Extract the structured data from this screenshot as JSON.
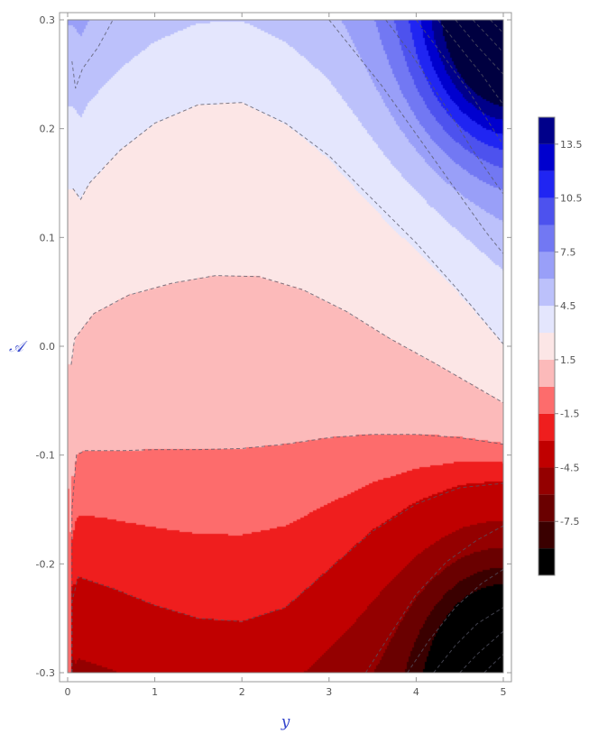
{
  "chart_data": {
    "type": "contour",
    "xlabel": "y",
    "ylabel": "𝒜",
    "xlim": [
      0,
      5
    ],
    "ylim": [
      -0.3,
      0.3
    ],
    "x_ticks": [
      0,
      1,
      2,
      3,
      4,
      5
    ],
    "y_ticks": [
      -0.3,
      -0.2,
      -0.1,
      0.0,
      0.1,
      0.2,
      0.3
    ],
    "x_tick_labels": [
      "0",
      "1",
      "2",
      "3",
      "4",
      "5"
    ],
    "y_tick_labels": [
      "-0.3",
      "-0.2",
      "-0.1",
      "0.0",
      "0.1",
      "0.2",
      "0.3"
    ],
    "colorbar": {
      "range": [
        -10.5,
        15
      ],
      "levels": [
        -10.5,
        -9,
        -7.5,
        -6,
        -4.5,
        -3,
        -1.5,
        0,
        1.5,
        3,
        4.5,
        6,
        7.5,
        9,
        10.5,
        12,
        13.5,
        15
      ],
      "tick_values": [
        -7.5,
        -4.5,
        -1.5,
        1.5,
        4.5,
        7.5,
        10.5,
        13.5
      ],
      "tick_labels": [
        "-7.5",
        "-4.5",
        "-1.5",
        "1.5",
        "4.5",
        "7.5",
        "10.5",
        "13.5"
      ],
      "colors": [
        "#000000",
        "#3a0000",
        "#6a0000",
        "#940000",
        "#c00000",
        "#ef1e1e",
        "#fd6c6c",
        "#fcbaba",
        "#fce6e6",
        "#e4e6fd",
        "#bcc1fb",
        "#999ff8",
        "#7278f3",
        "#4d52ee",
        "#2025f2",
        "#0000ce",
        "#00008a",
        "#000040"
      ]
    },
    "dashed_contours": [
      {
        "level": -3,
        "points": [
          [
            0.05,
            -0.3
          ],
          [
            0.05,
            -0.235
          ],
          [
            0.12,
            -0.212
          ],
          [
            0.5,
            -0.222
          ],
          [
            1,
            -0.238
          ],
          [
            1.5,
            -0.25
          ],
          [
            2,
            -0.253
          ],
          [
            2.5,
            -0.24
          ],
          [
            3,
            -0.205
          ],
          [
            3.5,
            -0.17
          ],
          [
            4,
            -0.145
          ],
          [
            4.5,
            -0.13
          ],
          [
            5,
            -0.126
          ]
        ]
      },
      {
        "level": 0,
        "points": [
          [
            0.05,
            -0.3
          ],
          [
            0.05,
            -0.15
          ],
          [
            0.1,
            -0.1
          ],
          [
            0.2,
            -0.096
          ],
          [
            0.6,
            -0.096
          ],
          [
            1,
            -0.095
          ],
          [
            1.5,
            -0.095
          ],
          [
            2,
            -0.094
          ],
          [
            2.5,
            -0.09
          ],
          [
            3,
            -0.084
          ],
          [
            3.5,
            -0.081
          ],
          [
            4,
            -0.081
          ],
          [
            4.5,
            -0.084
          ],
          [
            5,
            -0.09
          ]
        ]
      },
      {
        "level": 1.5,
        "points": [
          [
            0.04,
            -0.017
          ],
          [
            0.08,
            0.007
          ],
          [
            0.3,
            0.03
          ],
          [
            0.7,
            0.047
          ],
          [
            1.2,
            0.058
          ],
          [
            1.7,
            0.065
          ],
          [
            2.2,
            0.064
          ],
          [
            2.7,
            0.052
          ],
          [
            3.2,
            0.032
          ],
          [
            3.7,
            0.007
          ],
          [
            4.2,
            -0.015
          ],
          [
            4.7,
            -0.038
          ],
          [
            5,
            -0.052
          ]
        ]
      },
      {
        "level": 3,
        "points": [
          [
            0.06,
            0.145
          ],
          [
            0.15,
            0.135
          ],
          [
            0.25,
            0.15
          ],
          [
            0.6,
            0.18
          ],
          [
            1,
            0.205
          ],
          [
            1.5,
            0.222
          ],
          [
            2,
            0.224
          ],
          [
            2.5,
            0.205
          ],
          [
            3,
            0.175
          ],
          [
            3.5,
            0.135
          ],
          [
            4,
            0.095
          ],
          [
            4.5,
            0.05
          ],
          [
            5,
            0.002
          ]
        ]
      },
      {
        "level": 4.5,
        "points": [
          [
            0.05,
            0.262
          ],
          [
            0.09,
            0.237
          ],
          [
            0.17,
            0.255
          ],
          [
            0.35,
            0.275
          ],
          [
            0.52,
            0.3
          ]
        ]
      },
      {
        "level": 4.5,
        "points": [
          [
            3.0,
            0.3
          ],
          [
            3.3,
            0.27
          ],
          [
            3.6,
            0.24
          ],
          [
            4.0,
            0.195
          ],
          [
            4.4,
            0.15
          ],
          [
            4.8,
            0.105
          ],
          [
            5,
            0.085
          ]
        ]
      },
      {
        "level": 6,
        "points": [
          [
            3.65,
            0.3
          ],
          [
            3.95,
            0.268
          ],
          [
            4.3,
            0.225
          ],
          [
            4.65,
            0.18
          ],
          [
            5,
            0.14
          ]
        ]
      },
      {
        "level": 7.5,
        "points": [
          [
            4.0,
            0.3
          ],
          [
            4.3,
            0.268
          ],
          [
            4.6,
            0.235
          ],
          [
            5,
            0.185
          ]
        ]
      },
      {
        "level": 9,
        "points": [
          [
            4.25,
            0.3
          ],
          [
            4.5,
            0.275
          ],
          [
            4.75,
            0.25
          ],
          [
            5,
            0.222
          ]
        ]
      },
      {
        "level": 10.5,
        "points": [
          [
            4.45,
            0.3
          ],
          [
            4.7,
            0.276
          ],
          [
            5,
            0.25
          ]
        ]
      },
      {
        "level": 12,
        "points": [
          [
            4.65,
            0.3
          ],
          [
            4.85,
            0.283
          ],
          [
            5,
            0.27
          ]
        ]
      },
      {
        "level": 13.5,
        "points": [
          [
            4.85,
            0.3
          ],
          [
            5,
            0.288
          ]
        ]
      },
      {
        "level": -4.5,
        "points": [
          [
            3.42,
            -0.3
          ],
          [
            3.7,
            -0.265
          ],
          [
            4,
            -0.228
          ],
          [
            4.35,
            -0.198
          ],
          [
            4.7,
            -0.178
          ],
          [
            5,
            -0.165
          ]
        ]
      },
      {
        "level": -6,
        "points": [
          [
            3.9,
            -0.3
          ],
          [
            4.15,
            -0.27
          ],
          [
            4.45,
            -0.24
          ],
          [
            4.75,
            -0.218
          ],
          [
            5,
            -0.205
          ]
        ]
      },
      {
        "level": -7.5,
        "points": [
          [
            4.2,
            -0.3
          ],
          [
            4.45,
            -0.275
          ],
          [
            4.7,
            -0.255
          ],
          [
            5,
            -0.24
          ]
        ]
      },
      {
        "level": -9,
        "points": [
          [
            4.5,
            -0.3
          ],
          [
            4.7,
            -0.283
          ],
          [
            5,
            -0.262
          ]
        ]
      },
      {
        "level": -10.5,
        "points": [
          [
            4.78,
            -0.3
          ],
          [
            5,
            -0.283
          ]
        ]
      }
    ]
  }
}
